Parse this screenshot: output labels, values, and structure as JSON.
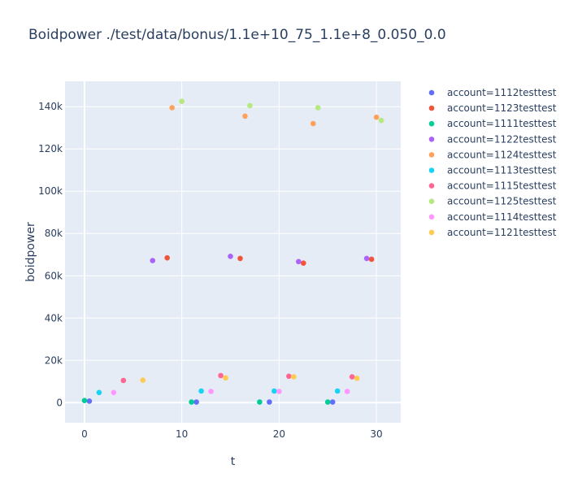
{
  "chart_data": {
    "type": "scatter",
    "title": "Boidpower ./test/data/bonus/1.1e+10_75_1.1e+8_0.050_0.0",
    "xlabel": "t",
    "ylabel": "boidpower",
    "xlim": [
      -2,
      32.5
    ],
    "ylim": [
      -9500,
      152000
    ],
    "x_ticks": [
      0,
      10,
      20,
      30
    ],
    "x_tick_labels": [
      "0",
      "10",
      "20",
      "30"
    ],
    "y_ticks": [
      0,
      20000,
      40000,
      60000,
      80000,
      100000,
      120000,
      140000
    ],
    "y_tick_labels": [
      "0",
      "20k",
      "40k",
      "60k",
      "80k",
      "100k",
      "120k",
      "140k"
    ],
    "grid": true,
    "legend_position": "right",
    "plot_background": "#e5ecf6",
    "series": [
      {
        "name": "account=1112testtest",
        "color": "#636efa",
        "x": [
          0.5,
          11.5,
          19,
          25.5
        ],
        "y": [
          700,
          300,
          300,
          300
        ]
      },
      {
        "name": "account=1123testtest",
        "color": "#ef553b",
        "x": [
          8.5,
          16,
          22.5,
          29.5
        ],
        "y": [
          68500,
          68200,
          66000,
          67800
        ]
      },
      {
        "name": "account=1111testtest",
        "color": "#00cc96",
        "x": [
          0,
          11,
          18,
          25
        ],
        "y": [
          1000,
          300,
          300,
          300
        ]
      },
      {
        "name": "account=1122testtest",
        "color": "#ab63fa",
        "x": [
          7,
          15,
          22,
          29
        ],
        "y": [
          67200,
          69200,
          66700,
          68200
        ]
      },
      {
        "name": "account=1124testtest",
        "color": "#ffa15a",
        "x": [
          9,
          16.5,
          23.5,
          30
        ],
        "y": [
          139500,
          135500,
          132000,
          135000
        ]
      },
      {
        "name": "account=1113testtest",
        "color": "#19d3f3",
        "x": [
          1.5,
          12,
          19.5,
          26
        ],
        "y": [
          4800,
          5500,
          5500,
          5500
        ]
      },
      {
        "name": "account=1115testtest",
        "color": "#ff6692",
        "x": [
          4,
          14,
          21,
          27.5
        ],
        "y": [
          10500,
          12800,
          12500,
          12200
        ]
      },
      {
        "name": "account=1125testtest",
        "color": "#b6e880",
        "x": [
          10,
          17,
          24,
          30.5
        ],
        "y": [
          142500,
          140500,
          139500,
          133500
        ]
      },
      {
        "name": "account=1114testtest",
        "color": "#ff97ff",
        "x": [
          3,
          13,
          20,
          27
        ],
        "y": [
          4800,
          5300,
          5300,
          5300
        ]
      },
      {
        "name": "account=1121testtest",
        "color": "#fecb52",
        "x": [
          6,
          14.5,
          21.5,
          28
        ],
        "y": [
          10600,
          11700,
          12200,
          11500
        ]
      }
    ]
  }
}
